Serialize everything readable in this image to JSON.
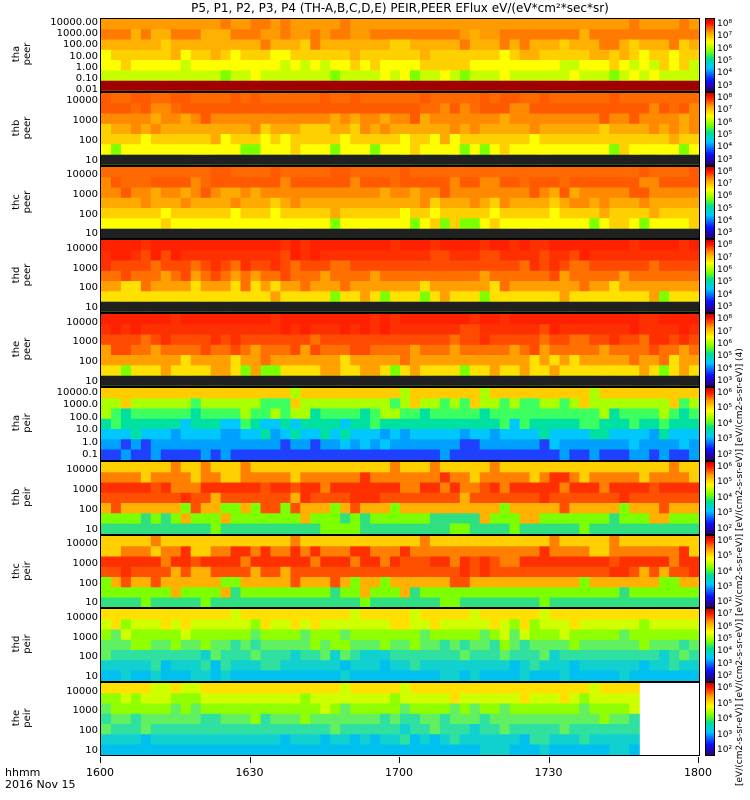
{
  "title": "P5, P1, P2, P3, P4 (TH-A,B,C,D,E) PEIR,PEER EFlux eV/(eV*cm²*sec*sr)",
  "footer": {
    "time_label": "hhmm",
    "date_label": "2016 Nov 15"
  },
  "colorbar_unit": "[eV/(cm2-s-sr-eV)] [eV/(cm2-s-sr-eV)] [eV/(cm2-s-sr-eV)] [eV/(cm2-s-sr-eV)] [eV/(cm2-s-sr-eV)] (4)",
  "colors": {
    "low": "#1010ff",
    "mid": "#7cff00",
    "high": "#ff1a00",
    "max": "#d00000"
  },
  "chart_data": {
    "type": "heatmap",
    "title": "P5, P1, P2, P3, P4 (TH-A,B,C,D,E) PEIR,PEER EFlux eV/(eV*cm²*sec*sr)",
    "x": {
      "ticks": [
        "1600",
        "1630",
        "1700",
        "1730",
        "1800"
      ],
      "range": [
        "16:00",
        "18:00"
      ],
      "label": "hhmm"
    },
    "panels": [
      {
        "ylabel": "tha peer",
        "ticks": [
          "10000.00",
          "1000.00",
          "100.00",
          "10.00",
          "1.00",
          "0.10",
          "0.01"
        ],
        "yrange": [
          0.01,
          30000
        ],
        "y_scale": "log",
        "cbar_ticks": [
          "10⁸",
          "10⁷",
          "10⁶",
          "10⁵",
          "10⁴",
          "10³"
        ],
        "level": "medium"
      },
      {
        "ylabel": "thb peer",
        "ticks": [
          "10000",
          "1000",
          "100",
          "10"
        ],
        "yrange": [
          7,
          30000
        ],
        "y_scale": "log",
        "cbar_ticks": [
          "10⁸",
          "10⁷",
          "10⁶",
          "10⁵",
          "10⁴",
          "10³"
        ],
        "level": "high"
      },
      {
        "ylabel": "thc peer",
        "ticks": [
          "10000",
          "1000",
          "100",
          "10"
        ],
        "yrange": [
          7,
          30000
        ],
        "y_scale": "log",
        "cbar_ticks": [
          "10⁸",
          "10⁷",
          "10⁶",
          "10⁵",
          "10⁴",
          "10³"
        ],
        "level": "high"
      },
      {
        "ylabel": "thd peer",
        "ticks": [
          "10000",
          "1000",
          "100",
          "10"
        ],
        "yrange": [
          7,
          30000
        ],
        "y_scale": "log",
        "cbar_ticks": [
          "10⁸",
          "10⁷",
          "10⁶",
          "10⁵",
          "10⁴",
          "10³"
        ],
        "level": "very_high"
      },
      {
        "ylabel": "the peer",
        "ticks": [
          "10000",
          "1000",
          "100",
          "10"
        ],
        "yrange": [
          7,
          30000
        ],
        "y_scale": "log",
        "cbar_ticks": [
          "10⁸",
          "10⁷",
          "10⁶",
          "10⁵",
          "10⁴",
          "10³"
        ],
        "level": "very_high"
      },
      {
        "ylabel": "tha peir",
        "ticks": [
          "10000.0",
          "1000.0",
          "100.0",
          "10.0",
          "1.0",
          "0.1"
        ],
        "yrange": [
          0.05,
          30000
        ],
        "y_scale": "log",
        "cbar_ticks": [
          "10⁶",
          "10⁵",
          "10⁴",
          "10³",
          "10²"
        ],
        "level": "low"
      },
      {
        "ylabel": "thb peir",
        "ticks": [
          "10000",
          "1000",
          "100",
          "10"
        ],
        "yrange": [
          7,
          30000
        ],
        "y_scale": "log",
        "cbar_ticks": [
          "10⁶",
          "10⁵",
          "10⁴",
          "10³",
          "10²"
        ],
        "level": "high_band"
      },
      {
        "ylabel": "thc peir",
        "ticks": [
          "10000",
          "1000",
          "100",
          "10"
        ],
        "yrange": [
          7,
          30000
        ],
        "y_scale": "log",
        "cbar_ticks": [
          "10⁶",
          "10⁵",
          "10⁴",
          "10³",
          "10²"
        ],
        "level": "high_band"
      },
      {
        "ylabel": "thd peir",
        "ticks": [
          "10000",
          "1000",
          "100",
          "10"
        ],
        "yrange": [
          7,
          30000
        ],
        "y_scale": "log",
        "cbar_ticks": [
          "10⁷",
          "10⁶",
          "10⁵",
          "10⁴",
          "10³",
          "10²"
        ],
        "level": "medium_low"
      },
      {
        "ylabel": "the peir",
        "ticks": [
          "10000",
          "1000",
          "100",
          "10"
        ],
        "yrange": [
          7,
          30000
        ],
        "y_scale": "log",
        "cbar_ticks": [
          "10⁶",
          "10⁵",
          "10⁴",
          "10³",
          "10²"
        ],
        "level": "medium_low",
        "data_end": "17:48"
      }
    ]
  }
}
